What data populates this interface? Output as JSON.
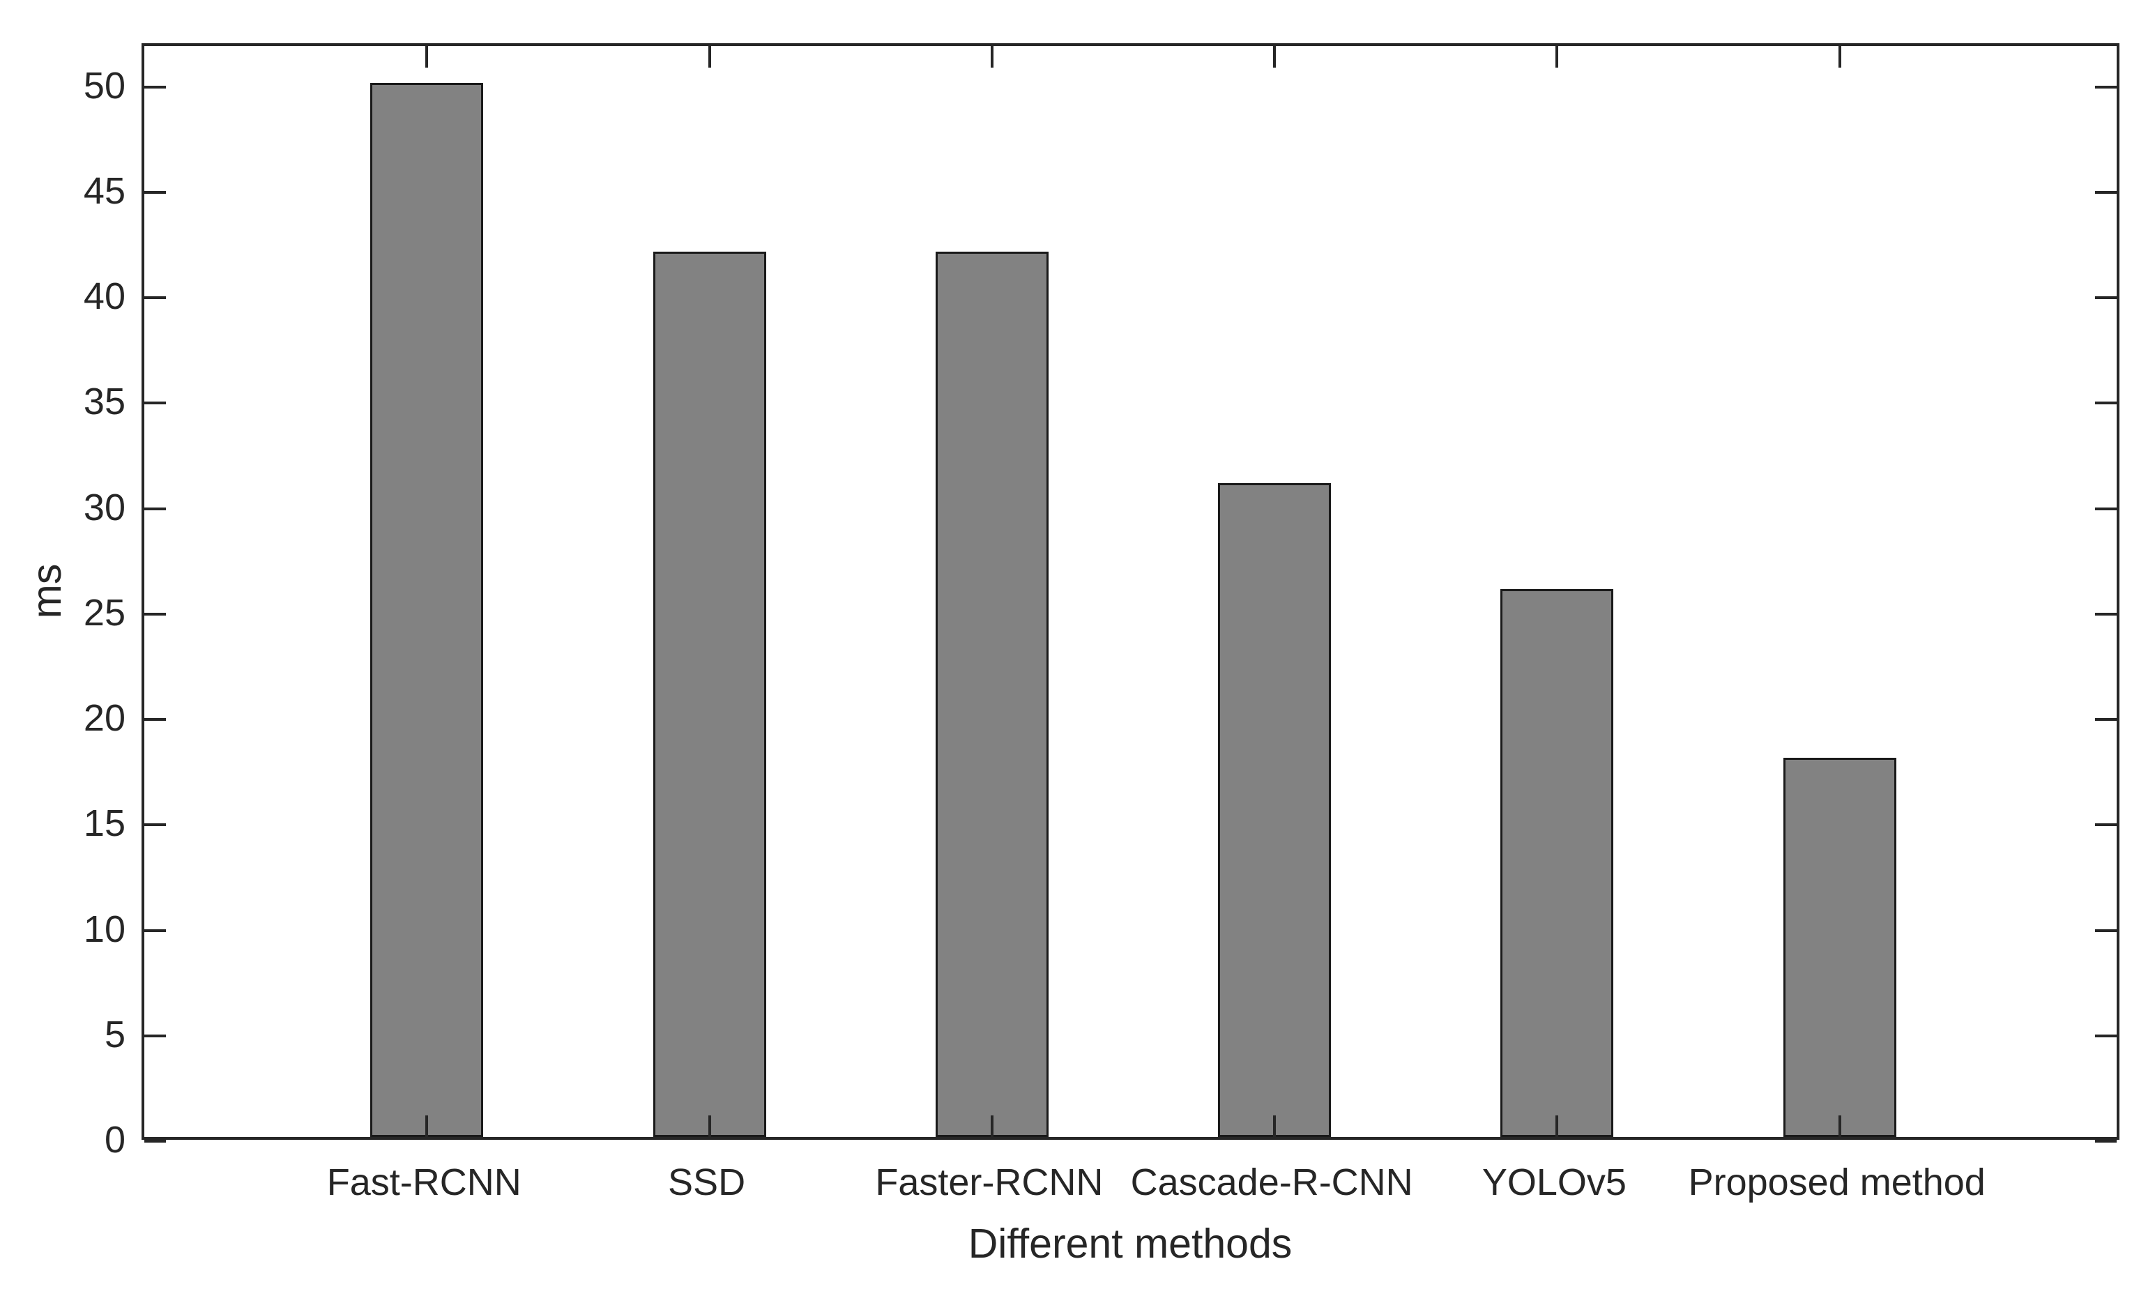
{
  "chart_data": {
    "type": "bar",
    "title": "",
    "categories": [
      "Fast-RCNN",
      "SSD",
      "Faster-RCNN",
      "Cascade-R-CNN",
      "YOLOv5",
      "Proposed method"
    ],
    "values": [
      50,
      42,
      42,
      31,
      26,
      18
    ],
    "xlabel": "Different methods",
    "ylabel": "ms",
    "ylim": [
      0,
      52
    ],
    "yticks": [
      0,
      5,
      10,
      15,
      20,
      25,
      30,
      35,
      40,
      45,
      50
    ],
    "grid": false,
    "legend": null,
    "bar_width_fraction": 0.4,
    "colors": {
      "bar_fill": "#828282",
      "bar_edge": "#1a1a1a",
      "axis": "#262626",
      "text": "#262626",
      "background": "#ffffff"
    }
  }
}
